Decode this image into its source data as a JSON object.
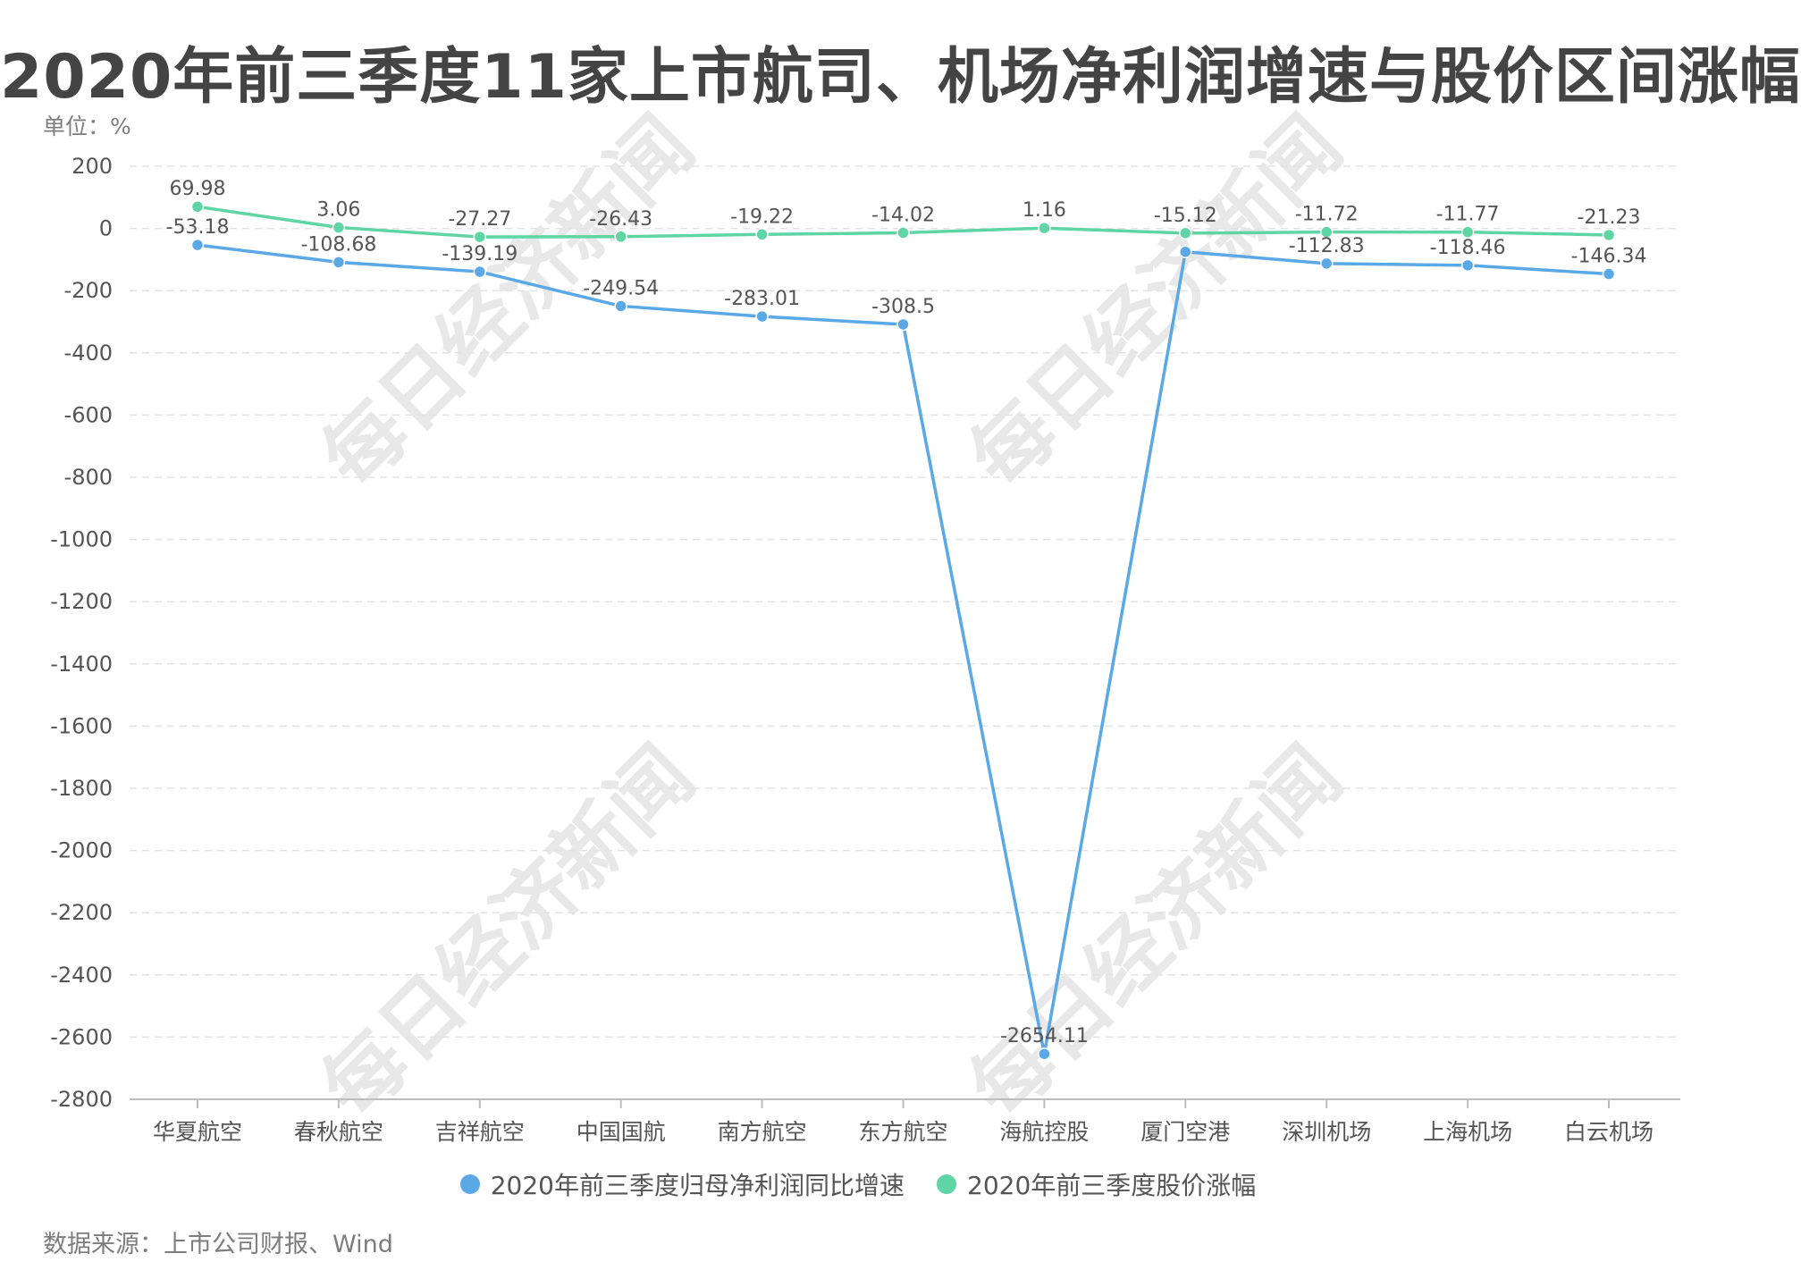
{
  "title": "2020年前三季度11家上市航司、机场净利润增速与股价区间涨幅",
  "unit": "单位：%",
  "source": "数据来源：上市公司财报、Wind",
  "watermark": "每日经济新闻",
  "chart_data": {
    "type": "line",
    "categories": [
      "华夏航空",
      "春秋航空",
      "吉祥航空",
      "中国国航",
      "南方航空",
      "东方航空",
      "海航控股",
      "厦门空港",
      "深圳机场",
      "上海机场",
      "白云机场"
    ],
    "series": [
      {
        "name": "2020年前三季度归母净利润同比增速",
        "color": "#5aa9e6",
        "values": [
          -53.18,
          -108.68,
          -139.19,
          -249.54,
          -283.01,
          -308.5,
          -2654.11,
          -75,
          -112.83,
          -118.46,
          -146.34
        ],
        "labels": [
          "-53.18",
          "-108.68",
          "-139.19",
          "-249.54",
          "-283.01",
          "-308.5",
          "-2654.11",
          null,
          "-112.83",
          "-118.46",
          "-146.34"
        ]
      },
      {
        "name": "2020年前三季度股价涨幅",
        "color": "#5fd4a4",
        "values": [
          69.98,
          3.06,
          -27.27,
          -26.43,
          -19.22,
          -14.02,
          1.16,
          -15.12,
          -11.72,
          -11.77,
          -21.23
        ],
        "labels": [
          "69.98",
          "3.06",
          "-27.27",
          "-26.43",
          "-19.22",
          "-14.02",
          "1.16",
          "-15.12",
          "-11.72",
          "-11.77",
          "-21.23"
        ]
      }
    ],
    "ylim": [
      -2800,
      200
    ],
    "yticks": [
      200,
      0,
      -200,
      -400,
      -600,
      -800,
      -1000,
      -1200,
      -1400,
      -1600,
      -1800,
      -2000,
      -2200,
      -2400,
      -2600,
      -2800
    ],
    "grid": true,
    "legend_position": "bottom"
  }
}
